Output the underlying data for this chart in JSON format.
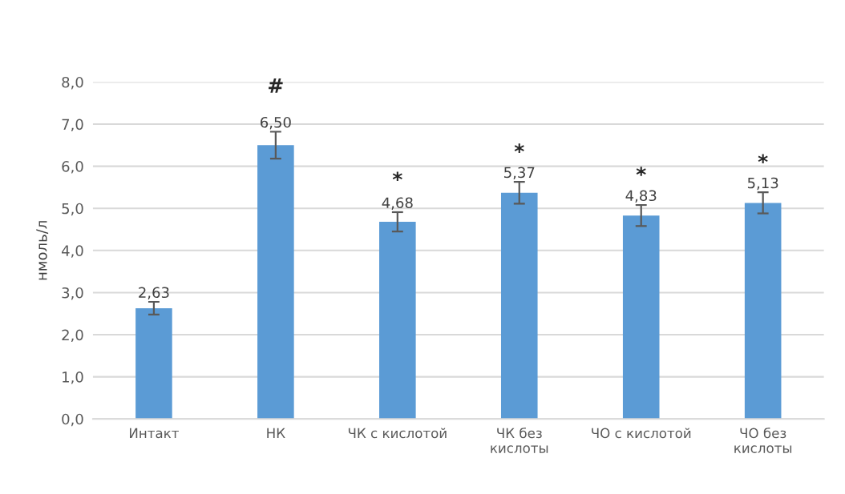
{
  "chart_data": {
    "type": "bar",
    "ylabel": "нмоль/л",
    "categories": [
      "Интакт",
      "НК",
      "ЧК с кислотой",
      "ЧК без\nкислоты",
      "ЧО с кислотой",
      "ЧО без\nкислоты"
    ],
    "values": [
      2.63,
      6.5,
      4.68,
      5.37,
      4.83,
      5.13
    ],
    "errors": [
      0.15,
      0.32,
      0.23,
      0.26,
      0.25,
      0.25
    ],
    "value_labels": [
      "2,63",
      "6,50",
      "4,68",
      "5,37",
      "4,83",
      "5,13"
    ],
    "color": "#5b9bd5",
    "ylim": [
      0,
      8
    ],
    "yticks": [
      {
        "value": 0,
        "label": "0,0"
      },
      {
        "value": 1,
        "label": "1,0"
      },
      {
        "value": 2,
        "label": "2,0"
      },
      {
        "value": 3,
        "label": "3,0"
      },
      {
        "value": 4,
        "label": "4,0"
      },
      {
        "value": 5,
        "label": "5,0"
      },
      {
        "value": 6,
        "label": "6,0"
      },
      {
        "value": 7,
        "label": "7,0"
      },
      {
        "value": 8,
        "label": "8,0"
      }
    ],
    "grid": "y",
    "annotations": [
      "#",
      "*",
      "*",
      "*",
      "*"
    ]
  }
}
